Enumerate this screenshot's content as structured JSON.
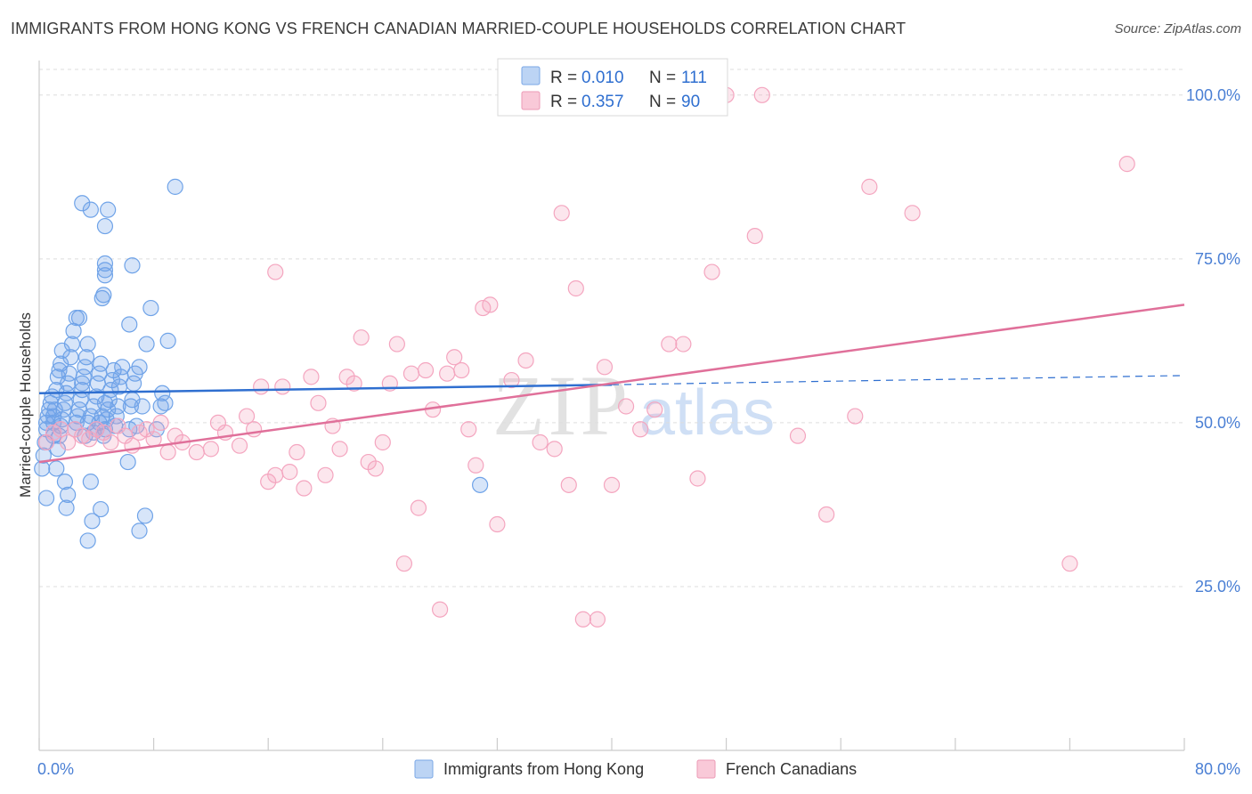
{
  "title": "IMMIGRANTS FROM HONG KONG VS FRENCH CANADIAN MARRIED-COUPLE HOUSEHOLDS CORRELATION CHART",
  "source": "Source: ZipAtlas.com",
  "watermark": {
    "zip": "ZIP",
    "atlas": "atlas"
  },
  "chart_data": {
    "type": "scatter",
    "title": "IMMIGRANTS FROM HONG KONG VS FRENCH CANADIAN MARRIED-COUPLE HOUSEHOLDS CORRELATION CHART",
    "xlabel": "",
    "ylabel": "Married-couple Households",
    "xlim": [
      0,
      80
    ],
    "ylim": [
      0,
      105
    ],
    "x_tick_labels": [
      "0.0%",
      "80.0%"
    ],
    "y_ticks": [
      25,
      50,
      75,
      100
    ],
    "y_tick_labels": [
      "25.0%",
      "50.0%",
      "75.0%",
      "100.0%"
    ],
    "grid": true,
    "legend_position": "top-center",
    "series": [
      {
        "name": "Immigrants from Hong Kong",
        "color": "#6fa3e8",
        "line_color": "#2f6fd0",
        "R": "0.010",
        "N": "111",
        "R_label": "R =",
        "N_label": "N =",
        "trend": {
          "x0": 0,
          "y0": 54.5,
          "x1": 40,
          "y1": 55.8,
          "dashed_to_x": 80,
          "dashed_to_y": 57.2
        },
        "points": [
          [
            0.2,
            43
          ],
          [
            0.3,
            45
          ],
          [
            0.4,
            47
          ],
          [
            0.5,
            49
          ],
          [
            0.5,
            50
          ],
          [
            0.6,
            51
          ],
          [
            0.7,
            52
          ],
          [
            0.8,
            53
          ],
          [
            0.9,
            54
          ],
          [
            0.5,
            38.5
          ],
          [
            1,
            48
          ],
          [
            1,
            50
          ],
          [
            1,
            51
          ],
          [
            1.1,
            52
          ],
          [
            1.2,
            55
          ],
          [
            1.3,
            57
          ],
          [
            1.4,
            58
          ],
          [
            1.5,
            59
          ],
          [
            1.6,
            61
          ],
          [
            1.2,
            43
          ],
          [
            1.3,
            46
          ],
          [
            1.4,
            48
          ],
          [
            1.5,
            49.5
          ],
          [
            1.6,
            50.5
          ],
          [
            1.7,
            52
          ],
          [
            1.8,
            53
          ],
          [
            1.9,
            54.5
          ],
          [
            2,
            56
          ],
          [
            2.1,
            57.5
          ],
          [
            2.2,
            60
          ],
          [
            2.3,
            62
          ],
          [
            2.4,
            64
          ],
          [
            1.8,
            41
          ],
          [
            1.9,
            37
          ],
          [
            2,
            39
          ],
          [
            2.5,
            49
          ],
          [
            2.6,
            50
          ],
          [
            2.7,
            51
          ],
          [
            2.8,
            52
          ],
          [
            2.9,
            53.5
          ],
          [
            3,
            55
          ],
          [
            3.1,
            57
          ],
          [
            3.2,
            58.5
          ],
          [
            3.3,
            60
          ],
          [
            3.4,
            62
          ],
          [
            2.6,
            66
          ],
          [
            2.8,
            66
          ],
          [
            3,
            56
          ],
          [
            3.2,
            48
          ],
          [
            3.4,
            50
          ],
          [
            3.6,
            51
          ],
          [
            3.8,
            52.5
          ],
          [
            4,
            54
          ],
          [
            4.1,
            56
          ],
          [
            4.2,
            57.5
          ],
          [
            4.3,
            59
          ],
          [
            4.4,
            69
          ],
          [
            4.5,
            69.5
          ],
          [
            3.6,
            41
          ],
          [
            3.7,
            35
          ],
          [
            4.5,
            48
          ],
          [
            4.6,
            49
          ],
          [
            4.7,
            50.5
          ],
          [
            4.8,
            52
          ],
          [
            4.9,
            53.5
          ],
          [
            5,
            55
          ],
          [
            5.1,
            56.5
          ],
          [
            5.2,
            58
          ],
          [
            3.8,
            48.5
          ],
          [
            4,
            49
          ],
          [
            4.2,
            50
          ],
          [
            4.4,
            51
          ],
          [
            4.6,
            53
          ],
          [
            5.3,
            49.5
          ],
          [
            5.4,
            51
          ],
          [
            5.5,
            52.5
          ],
          [
            5.6,
            55.5
          ],
          [
            5.7,
            57
          ],
          [
            5.8,
            58.5
          ],
          [
            4.6,
            72.5
          ],
          [
            4.6,
            73.3
          ],
          [
            4.6,
            74.3
          ],
          [
            4.6,
            80
          ],
          [
            6.2,
            44
          ],
          [
            6.3,
            49
          ],
          [
            6.4,
            52.5
          ],
          [
            6.5,
            53.5
          ],
          [
            6.6,
            56
          ],
          [
            6.7,
            57.5
          ],
          [
            7,
            33.5
          ],
          [
            4.3,
            36.8
          ],
          [
            7.5,
            62
          ],
          [
            7.8,
            67.5
          ],
          [
            7.4,
            35.8
          ],
          [
            8.2,
            49
          ],
          [
            8.5,
            52.5
          ],
          [
            8.6,
            54.5
          ],
          [
            8.8,
            53
          ],
          [
            3,
            83.5
          ],
          [
            3.6,
            82.5
          ],
          [
            3.4,
            32
          ],
          [
            6.5,
            74
          ],
          [
            9,
            62.5
          ],
          [
            4.8,
            82.5
          ],
          [
            6.3,
            65
          ],
          [
            9.5,
            86
          ],
          [
            7,
            58.5
          ],
          [
            7.2,
            52.5
          ],
          [
            6.8,
            49.5
          ],
          [
            30.8,
            40.5
          ]
        ]
      },
      {
        "name": "French Canadians",
        "color": "#f4a5bf",
        "line_color": "#e0709a",
        "R": "0.357",
        "N": "90",
        "R_label": "R =",
        "N_label": "N =",
        "trend": {
          "x0": 0,
          "y0": 44,
          "x1": 80,
          "y1": 68
        },
        "points": [
          [
            0.5,
            47
          ],
          [
            1,
            48.5
          ],
          [
            1.5,
            49
          ],
          [
            2,
            47
          ],
          [
            2.5,
            49
          ],
          [
            3,
            48
          ],
          [
            3.5,
            47.5
          ],
          [
            4,
            49
          ],
          [
            4.5,
            48.5
          ],
          [
            5,
            47
          ],
          [
            5.5,
            49.5
          ],
          [
            6,
            48
          ],
          [
            6.5,
            46.5
          ],
          [
            7,
            48.5
          ],
          [
            7.5,
            49
          ],
          [
            8,
            47.5
          ],
          [
            8.5,
            50
          ],
          [
            9,
            45.5
          ],
          [
            9.5,
            48
          ],
          [
            10,
            47
          ],
          [
            11,
            45.5
          ],
          [
            12,
            46
          ],
          [
            12.5,
            50
          ],
          [
            13,
            48.5
          ],
          [
            14,
            46.5
          ],
          [
            14.5,
            51
          ],
          [
            15,
            49
          ],
          [
            15.5,
            55.5
          ],
          [
            16,
            41
          ],
          [
            16.5,
            42
          ],
          [
            17,
            55.5
          ],
          [
            17.5,
            42.5
          ],
          [
            18,
            45.5
          ],
          [
            18.5,
            40
          ],
          [
            19,
            57
          ],
          [
            19.5,
            53
          ],
          [
            20,
            42
          ],
          [
            20.5,
            49.5
          ],
          [
            21,
            46
          ],
          [
            21.5,
            57
          ],
          [
            22,
            56
          ],
          [
            22.5,
            63
          ],
          [
            23,
            44
          ],
          [
            23.5,
            43
          ],
          [
            24,
            47
          ],
          [
            24.5,
            56
          ],
          [
            25,
            62
          ],
          [
            25.5,
            28.5
          ],
          [
            26,
            57.5
          ],
          [
            26.5,
            37
          ],
          [
            27,
            58
          ],
          [
            27.5,
            52
          ],
          [
            28,
            21.5
          ],
          [
            28.5,
            57.5
          ],
          [
            29,
            60
          ],
          [
            29.5,
            58
          ],
          [
            30,
            49
          ],
          [
            30.5,
            43.5
          ],
          [
            31,
            67.5
          ],
          [
            31.5,
            68
          ],
          [
            32,
            34.5
          ],
          [
            33,
            56.5
          ],
          [
            34,
            59.5
          ],
          [
            35,
            47
          ],
          [
            36,
            46
          ],
          [
            36.5,
            82
          ],
          [
            37,
            40.5
          ],
          [
            37.5,
            70.5
          ],
          [
            38,
            20
          ],
          [
            39,
            20
          ],
          [
            39.5,
            58.5
          ],
          [
            40,
            40.5
          ],
          [
            41,
            52.5
          ],
          [
            42,
            49
          ],
          [
            43,
            52
          ],
          [
            44,
            62
          ],
          [
            45,
            62
          ],
          [
            46,
            41.5
          ],
          [
            47,
            73
          ],
          [
            48,
            100
          ],
          [
            50,
            78.5
          ],
          [
            50.5,
            100
          ],
          [
            53,
            48
          ],
          [
            55,
            36
          ],
          [
            57,
            51
          ],
          [
            58,
            86
          ],
          [
            61,
            82
          ],
          [
            72,
            28.5
          ],
          [
            76,
            89.5
          ],
          [
            16.5,
            73
          ]
        ]
      }
    ]
  }
}
